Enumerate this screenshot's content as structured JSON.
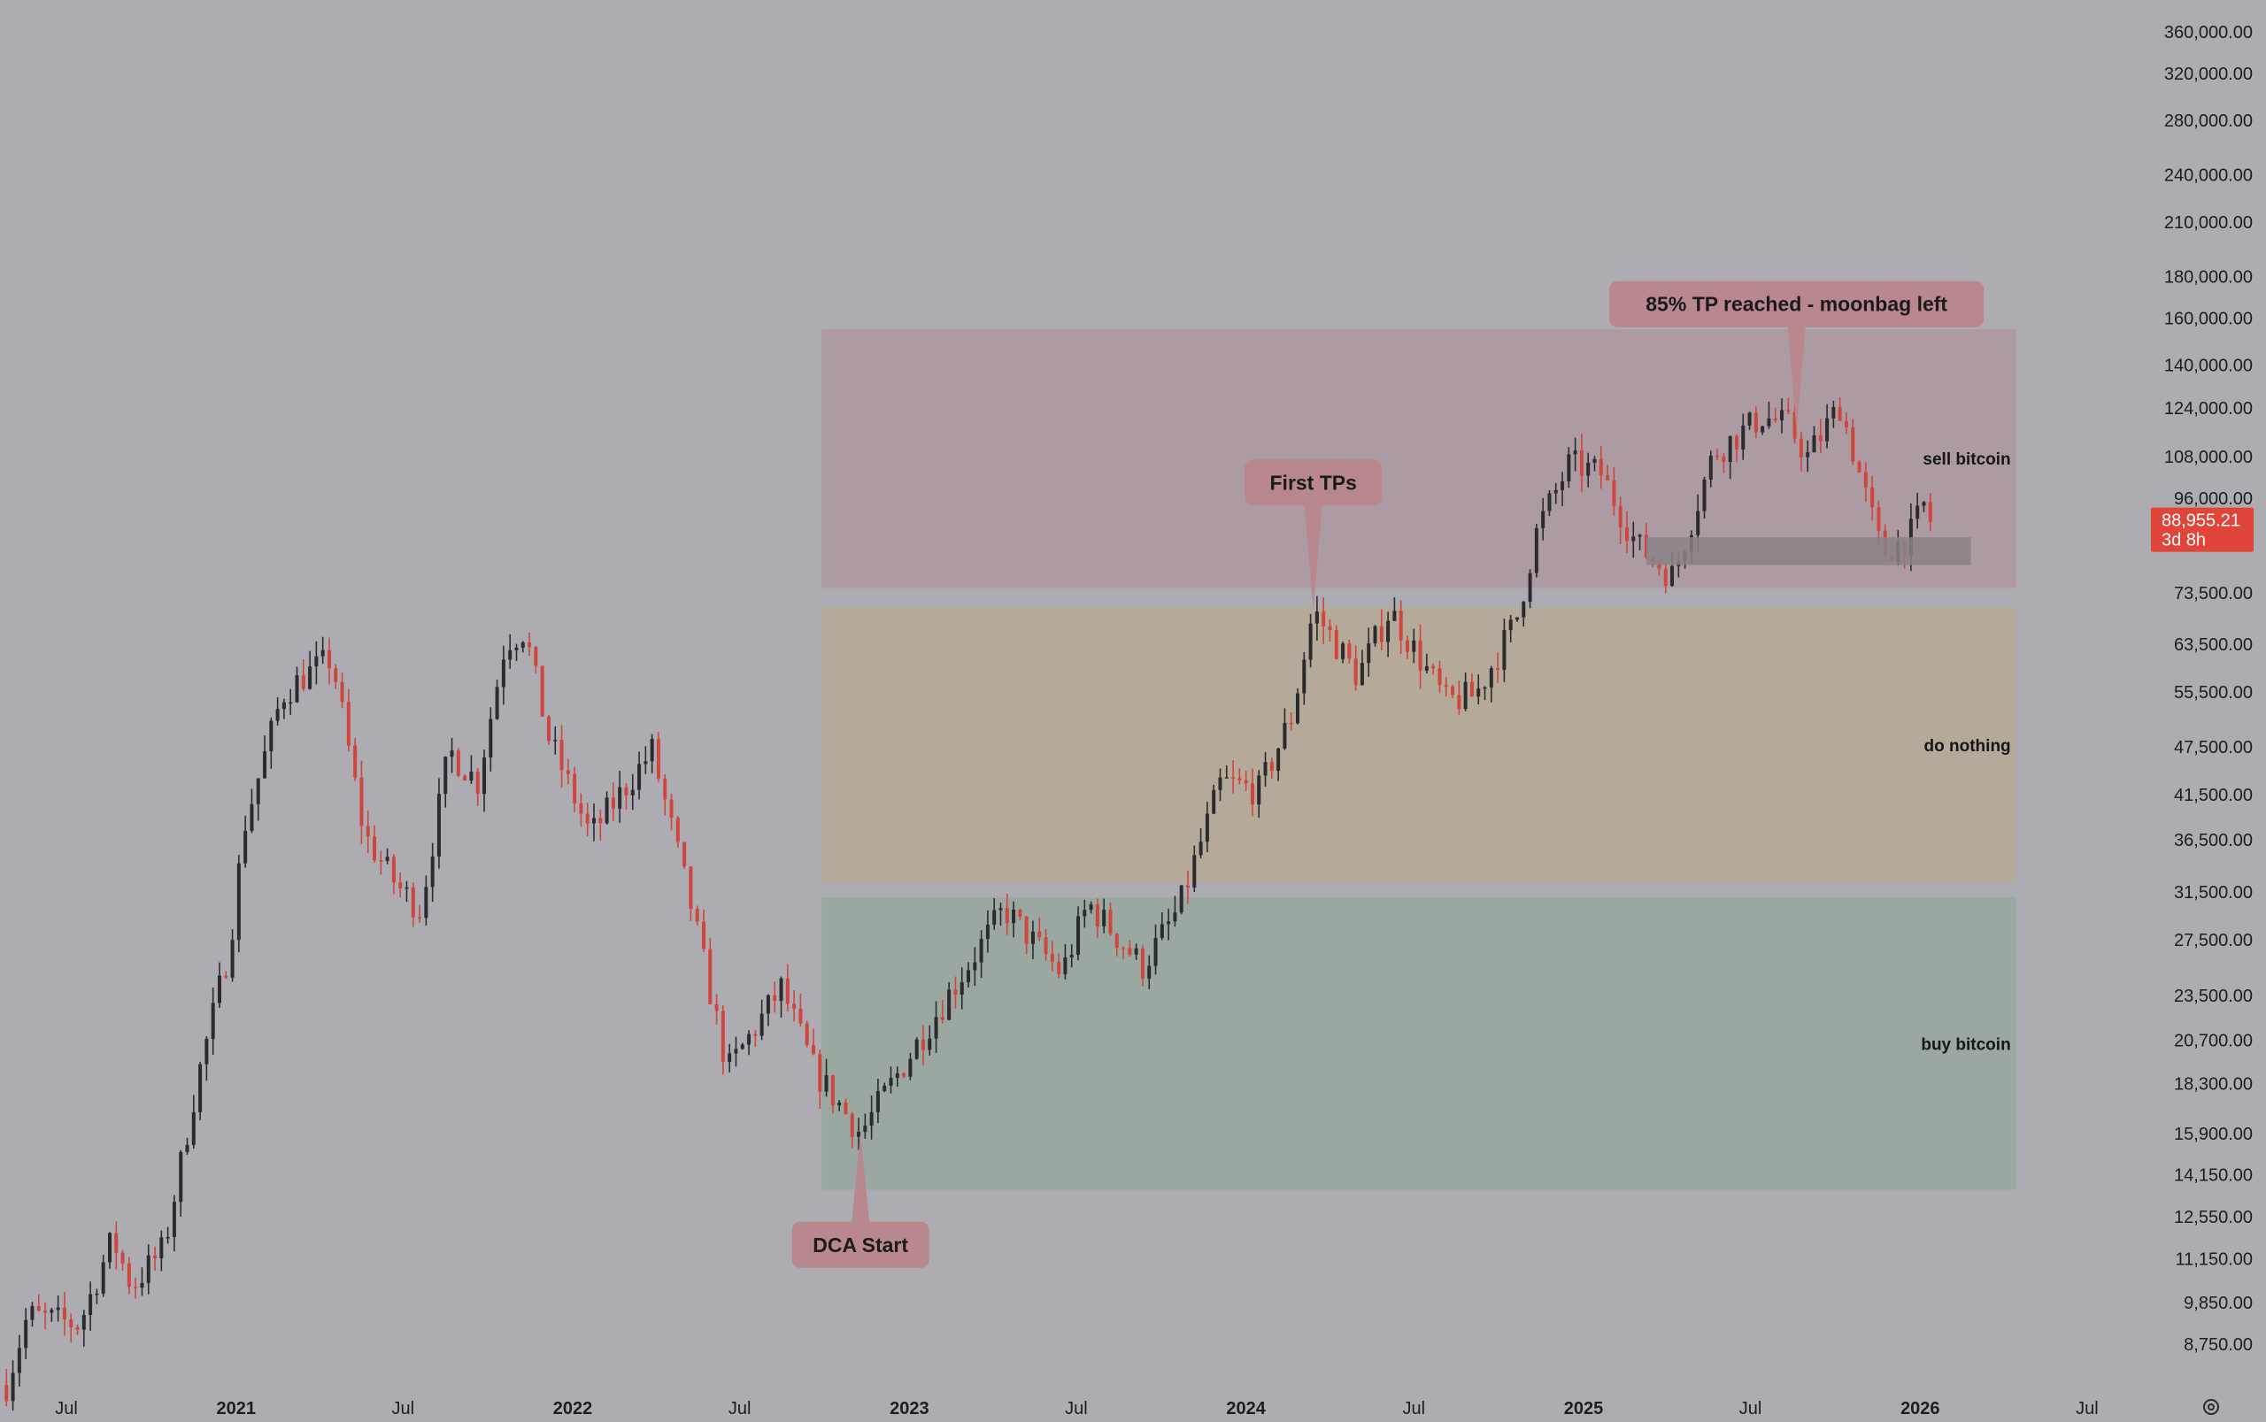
{
  "chart_data": {
    "type": "candlestick",
    "instrument_hint": "bitcoin",
    "y_scale": "log",
    "ylim": [
      7800,
      368000
    ],
    "y_ticks": [
      "360,000.00",
      "320,000.00",
      "280,000.00",
      "240,000.00",
      "210,000.00",
      "180,000.00",
      "160,000.00",
      "140,000.00",
      "124,000.00",
      "108,000.00",
      "96,000.00",
      "73,500.00",
      "63,500.00",
      "55,500.00",
      "47,500.00",
      "41,500.00",
      "36,500.00",
      "31,500.00",
      "27,500.00",
      "23,500.00",
      "20,700.00",
      "18,300.00",
      "15,900.00",
      "14,150.00",
      "12,550.00",
      "11,150.00",
      "9,850.00",
      "8,750.00"
    ],
    "x_ticks": [
      {
        "label": "Jul",
        "date": "2020-07-01",
        "bold": false
      },
      {
        "label": "2021",
        "date": "2021-01-01",
        "bold": true
      },
      {
        "label": "Jul",
        "date": "2021-07-01",
        "bold": false
      },
      {
        "label": "2022",
        "date": "2022-01-01",
        "bold": true
      },
      {
        "label": "Jul",
        "date": "2022-07-01",
        "bold": false
      },
      {
        "label": "2023",
        "date": "2023-01-01",
        "bold": true
      },
      {
        "label": "Jul",
        "date": "2023-07-01",
        "bold": false
      },
      {
        "label": "2024",
        "date": "2024-01-01",
        "bold": true
      },
      {
        "label": "Jul",
        "date": "2024-07-01",
        "bold": false
      },
      {
        "label": "2025",
        "date": "2025-01-01",
        "bold": true
      },
      {
        "label": "Jul",
        "date": "2025-07-01",
        "bold": false
      },
      {
        "label": "2026",
        "date": "2026-01-01",
        "bold": true
      },
      {
        "label": "Jul",
        "date": "2026-07-01",
        "bold": false
      }
    ],
    "xlim": [
      "2020-04-20",
      "2026-08-20"
    ],
    "price_path": [
      [
        "2020-04-27",
        7800
      ],
      [
        "2020-05-20",
        9500
      ],
      [
        "2020-07-15",
        9250
      ],
      [
        "2020-08-20",
        11800
      ],
      [
        "2020-09-10",
        10300
      ],
      [
        "2020-10-15",
        11500
      ],
      [
        "2020-11-20",
        18500
      ],
      [
        "2020-12-25",
        27000
      ],
      [
        "2021-01-10",
        38000
      ],
      [
        "2021-02-20",
        55000
      ],
      [
        "2021-03-15",
        58000
      ],
      [
        "2021-04-15",
        61000
      ],
      [
        "2021-05-20",
        37000
      ],
      [
        "2021-06-25",
        32000
      ],
      [
        "2021-07-20",
        30000
      ],
      [
        "2021-08-20",
        47000
      ],
      [
        "2021-09-20",
        43000
      ],
      [
        "2021-10-20",
        64000
      ],
      [
        "2021-11-10",
        66000
      ],
      [
        "2021-12-05",
        49000
      ],
      [
        "2022-01-20",
        37000
      ],
      [
        "2022-03-28",
        47000
      ],
      [
        "2022-05-10",
        30000
      ],
      [
        "2022-06-18",
        19000
      ],
      [
        "2022-08-15",
        24000
      ],
      [
        "2022-09-20",
        19000
      ],
      [
        "2022-11-09",
        15900
      ],
      [
        "2023-01-15",
        21000
      ],
      [
        "2023-04-14",
        30000
      ],
      [
        "2023-06-15",
        25000
      ],
      [
        "2023-07-14",
        30500
      ],
      [
        "2023-09-11",
        25500
      ],
      [
        "2023-10-20",
        30000
      ],
      [
        "2023-12-05",
        43000
      ],
      [
        "2024-01-15",
        42000
      ],
      [
        "2024-02-20",
        52000
      ],
      [
        "2024-03-14",
        70000
      ],
      [
        "2024-05-01",
        58000
      ],
      [
        "2024-06-05",
        70000
      ],
      [
        "2024-08-05",
        54000
      ],
      [
        "2024-09-06",
        55000
      ],
      [
        "2024-10-20",
        68000
      ],
      [
        "2024-11-12",
        88000
      ],
      [
        "2024-12-17",
        106000
      ],
      [
        "2025-01-20",
        103000
      ],
      [
        "2025-02-28",
        84000
      ],
      [
        "2025-04-08",
        77000
      ],
      [
        "2025-05-22",
        109000
      ],
      [
        "2025-07-14",
        121000
      ],
      [
        "2025-08-12",
        118000
      ],
      [
        "2025-09-01",
        108000
      ],
      [
        "2025-10-06",
        125000
      ],
      [
        "2025-11-21",
        82000
      ],
      [
        "2025-12-20",
        86000
      ],
      [
        "2026-01-05",
        94000
      ],
      [
        "2026-01-14",
        88955
      ]
    ],
    "zones": [
      {
        "label": "sell bitcoin",
        "low": 74500,
        "high": 155000,
        "color": "#ad9aa3",
        "opacity": 0.95
      },
      {
        "label": "do nothing",
        "low": 32300,
        "high": 70500,
        "color": "#b5a998",
        "opacity": 0.95
      },
      {
        "label": "buy bitcoin",
        "low": 13550,
        "high": 31000,
        "color": "#9aa7a0",
        "opacity": 0.95
      }
    ],
    "support_box": {
      "start": "2025-03-10",
      "end": "2026-02-25",
      "low": 79500,
      "high": 86000,
      "color": "#8a8387"
    },
    "zone_start": "2022-09-28",
    "zone_end": "2026-04-15",
    "annotations": [
      {
        "label": "DCA Start",
        "anchor_date": "2022-11-09",
        "anchor_price": 15900,
        "placement": "below"
      },
      {
        "label": "First TPs",
        "anchor_date": "2024-03-14",
        "anchor_price": 70000,
        "placement": "above"
      },
      {
        "label": "85% TP reached - moonbag left",
        "anchor_date": "2025-08-20",
        "anchor_price": 116000,
        "placement": "above"
      }
    ],
    "last_price": {
      "value": "88,955.21",
      "countdown": "3d 8h",
      "color": "#e0453a"
    },
    "colors": {
      "up": "#2b2b2e",
      "down": "#d0463c",
      "background": "#adacb3",
      "callout": "#b9868d"
    }
  }
}
